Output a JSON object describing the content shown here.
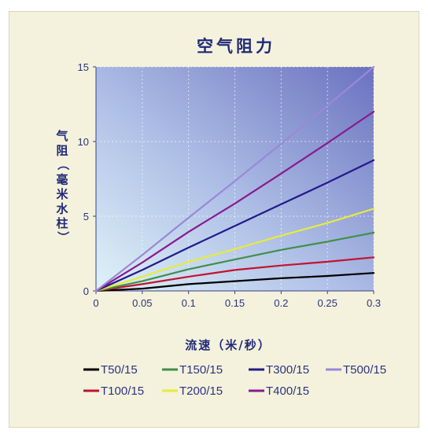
{
  "chart_data": {
    "type": "line",
    "title": "空气阻力",
    "xlabel": "流速（米/秒）",
    "ylabel": "气阻（毫米水柱）",
    "xlim": [
      0,
      0.3
    ],
    "ylim": [
      0,
      15
    ],
    "x_ticks": [
      "0",
      "0.05",
      "0.1",
      "0.15",
      "0.2",
      "0.25",
      "0.3"
    ],
    "y_ticks": [
      "0",
      "5",
      "10",
      "15"
    ],
    "grid": true,
    "legend_position": "bottom",
    "series": [
      {
        "name": "T50/15",
        "color": "#000000",
        "points": [
          [
            0,
            0
          ],
          [
            0.05,
            0.15
          ],
          [
            0.1,
            0.45
          ],
          [
            0.15,
            0.65
          ],
          [
            0.2,
            0.85
          ],
          [
            0.25,
            1.0
          ],
          [
            0.3,
            1.2
          ]
        ]
      },
      {
        "name": "T100/15",
        "color": "#c4122f",
        "points": [
          [
            0,
            0
          ],
          [
            0.05,
            0.45
          ],
          [
            0.1,
            0.95
          ],
          [
            0.15,
            1.4
          ],
          [
            0.2,
            1.7
          ],
          [
            0.25,
            1.95
          ],
          [
            0.3,
            2.25
          ]
        ]
      },
      {
        "name": "T150/15",
        "color": "#3f8f4a",
        "points": [
          [
            0,
            0
          ],
          [
            0.05,
            0.65
          ],
          [
            0.1,
            1.45
          ],
          [
            0.15,
            2.1
          ],
          [
            0.2,
            2.75
          ],
          [
            0.25,
            3.3
          ],
          [
            0.3,
            3.9
          ]
        ]
      },
      {
        "name": "T200/15",
        "color": "#e6ec3a",
        "points": [
          [
            0,
            0
          ],
          [
            0.05,
            0.95
          ],
          [
            0.1,
            1.95
          ],
          [
            0.15,
            2.8
          ],
          [
            0.2,
            3.7
          ],
          [
            0.25,
            4.55
          ],
          [
            0.3,
            5.5
          ]
        ]
      },
      {
        "name": "T300/15",
        "color": "#231a8a",
        "points": [
          [
            0,
            0
          ],
          [
            0.05,
            1.4
          ],
          [
            0.1,
            2.9
          ],
          [
            0.15,
            4.35
          ],
          [
            0.2,
            5.8
          ],
          [
            0.25,
            7.25
          ],
          [
            0.3,
            8.75
          ]
        ]
      },
      {
        "name": "T400/15",
        "color": "#8a1a8f",
        "points": [
          [
            0,
            0
          ],
          [
            0.05,
            1.9
          ],
          [
            0.1,
            3.95
          ],
          [
            0.15,
            5.85
          ],
          [
            0.2,
            7.85
          ],
          [
            0.25,
            9.9
          ],
          [
            0.3,
            12.0
          ]
        ]
      },
      {
        "name": "T500/15",
        "color": "#9a88d8",
        "points": [
          [
            0,
            0
          ],
          [
            0.05,
            2.4
          ],
          [
            0.1,
            4.9
          ],
          [
            0.15,
            7.35
          ],
          [
            0.2,
            9.85
          ],
          [
            0.25,
            12.4
          ],
          [
            0.3,
            15.0
          ]
        ]
      }
    ],
    "legend_order": [
      "T50/15",
      "T150/15",
      "T300/15",
      "T500/15",
      "T100/15",
      "T200/15",
      "T400/15"
    ]
  }
}
